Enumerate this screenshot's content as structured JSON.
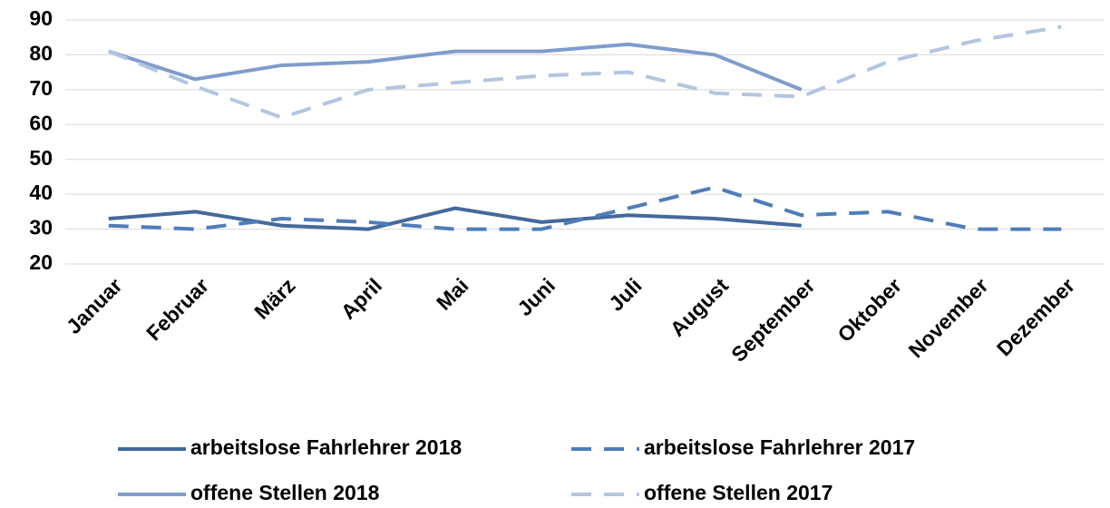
{
  "chart_data": {
    "type": "line",
    "categories": [
      "Januar",
      "Februar",
      "März",
      "April",
      "Mai",
      "Juni",
      "Juli",
      "August",
      "September",
      "Oktober",
      "November",
      "Dezember"
    ],
    "series": [
      {
        "name": "arbeitslose Fahrlehrer 2018",
        "color": "#44699b",
        "dashed": false,
        "values": [
          33,
          35,
          31,
          30,
          36,
          32,
          34,
          33,
          31,
          null,
          null,
          null
        ]
      },
      {
        "name": "arbeitslose Fahrlehrer 2017",
        "color": "#4f7dba",
        "dashed": true,
        "values": [
          31,
          30,
          33,
          32,
          30,
          30,
          36,
          42,
          34,
          35,
          30,
          30
        ]
      },
      {
        "name": "offene Stellen 2018",
        "color": "#7f9ccb",
        "dashed": false,
        "values": [
          81,
          73,
          77,
          78,
          81,
          81,
          83,
          80,
          70,
          null,
          null,
          null
        ]
      },
      {
        "name": "offene Stellen 2017",
        "color": "#b4c5e0",
        "dashed": true,
        "values": [
          81,
          71,
          62,
          70,
          72,
          74,
          75,
          69,
          68,
          78,
          84,
          88
        ]
      }
    ],
    "ylim": [
      20,
      90
    ],
    "yticks": [
      20,
      30,
      40,
      50,
      60,
      70,
      80,
      90
    ],
    "grid": true,
    "legend": "bottom"
  }
}
